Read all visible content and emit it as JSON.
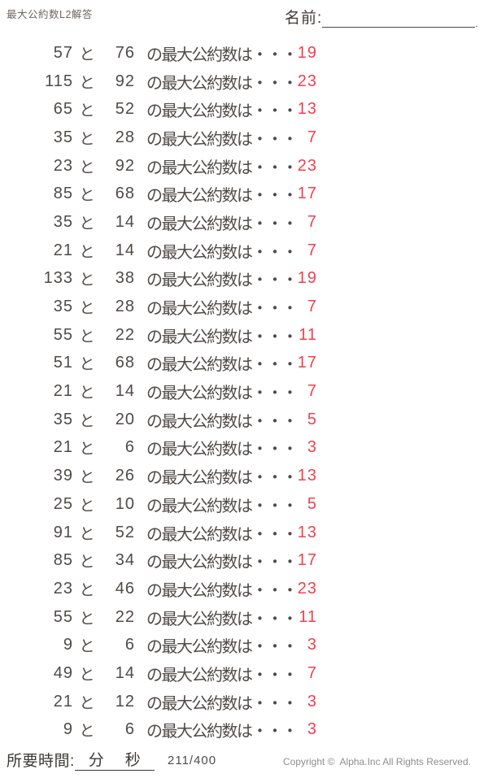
{
  "header": {
    "doc_title": "最大公約数L2解答",
    "name_label": "名前:",
    "name_value": "",
    "name_line_end_mark": "."
  },
  "problems": {
    "connector": "と",
    "suffix": "の最大公約数は・・・",
    "rows": [
      {
        "a": "57",
        "b": "76",
        "answer": "19"
      },
      {
        "a": "115",
        "b": "92",
        "answer": "23"
      },
      {
        "a": "65",
        "b": "52",
        "answer": "13"
      },
      {
        "a": "35",
        "b": "28",
        "answer": "7"
      },
      {
        "a": "23",
        "b": "92",
        "answer": "23"
      },
      {
        "a": "85",
        "b": "68",
        "answer": "17"
      },
      {
        "a": "35",
        "b": "14",
        "answer": "7"
      },
      {
        "a": "21",
        "b": "14",
        "answer": "7"
      },
      {
        "a": "133",
        "b": "38",
        "answer": "19"
      },
      {
        "a": "35",
        "b": "28",
        "answer": "7"
      },
      {
        "a": "55",
        "b": "22",
        "answer": "11"
      },
      {
        "a": "51",
        "b": "68",
        "answer": "17"
      },
      {
        "a": "21",
        "b": "14",
        "answer": "7"
      },
      {
        "a": "35",
        "b": "20",
        "answer": "5"
      },
      {
        "a": "21",
        "b": "6",
        "answer": "3"
      },
      {
        "a": "39",
        "b": "26",
        "answer": "13"
      },
      {
        "a": "25",
        "b": "10",
        "answer": "5"
      },
      {
        "a": "91",
        "b": "52",
        "answer": "13"
      },
      {
        "a": "85",
        "b": "34",
        "answer": "17"
      },
      {
        "a": "23",
        "b": "46",
        "answer": "23"
      },
      {
        "a": "55",
        "b": "22",
        "answer": "11"
      },
      {
        "a": "9",
        "b": "6",
        "answer": "3"
      },
      {
        "a": "49",
        "b": "14",
        "answer": "7"
      },
      {
        "a": "21",
        "b": "12",
        "answer": "3"
      },
      {
        "a": "9",
        "b": "6",
        "answer": "3"
      }
    ]
  },
  "footer": {
    "time_label": "所要時間:",
    "minutes_label": "分",
    "seconds_label": "秒",
    "page_indicator": "211/400",
    "copyright": "Copyright ©  Alpha.Inc All Rights Reserved."
  },
  "colors": {
    "answer_red": "#f2414c",
    "question_text": "#4f4a47",
    "muted_gray": "#8d8d8d"
  }
}
